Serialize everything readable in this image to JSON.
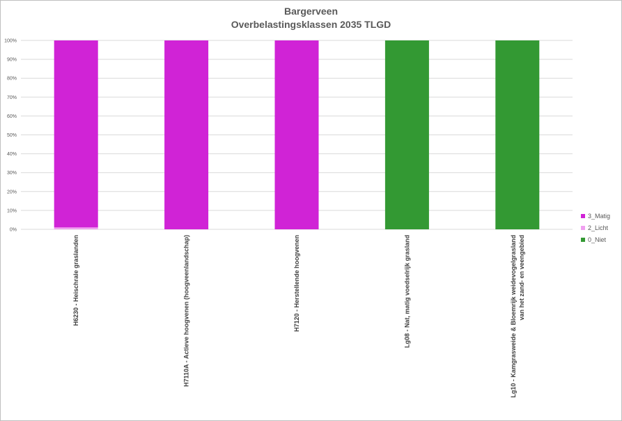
{
  "chart_data": {
    "type": "bar",
    "stacked": true,
    "percent_stacked": true,
    "title": "Bargerveen",
    "subtitle": "Overbelastingsklassen 2035 TLGD",
    "categories": [
      [
        "H6230 - Heischrale graslanden"
      ],
      [
        "H7110A - Actieve hoogvenen (hoogveenlandschap)"
      ],
      [
        "H7120 - Herstellende hoogvenen"
      ],
      [
        "Lg08 - Nat, matig voedselrijk grasland"
      ],
      [
        "Lg10 - Kamgrasweide & Bloemrijk weidevogelgrasland",
        "van het zand- en veengebied"
      ]
    ],
    "yticks": [
      "0%",
      "10%",
      "20%",
      "30%",
      "40%",
      "50%",
      "60%",
      "70%",
      "80%",
      "90%",
      "100%"
    ],
    "ylim": [
      0,
      100
    ],
    "grid": true,
    "legend_position": "right",
    "series": [
      {
        "name": "0_Niet",
        "color": "#339933",
        "values": [
          0,
          0,
          0,
          100,
          100
        ]
      },
      {
        "name": "2_Licht",
        "color": "#f0a0f0",
        "values": [
          1,
          0,
          0,
          0,
          0
        ]
      },
      {
        "name": "3_Matig",
        "color": "#d023d6",
        "values": [
          99,
          100,
          100,
          0,
          0
        ]
      }
    ],
    "legend_order": [
      "3_Matig",
      "2_Licht",
      "0_Niet"
    ]
  }
}
